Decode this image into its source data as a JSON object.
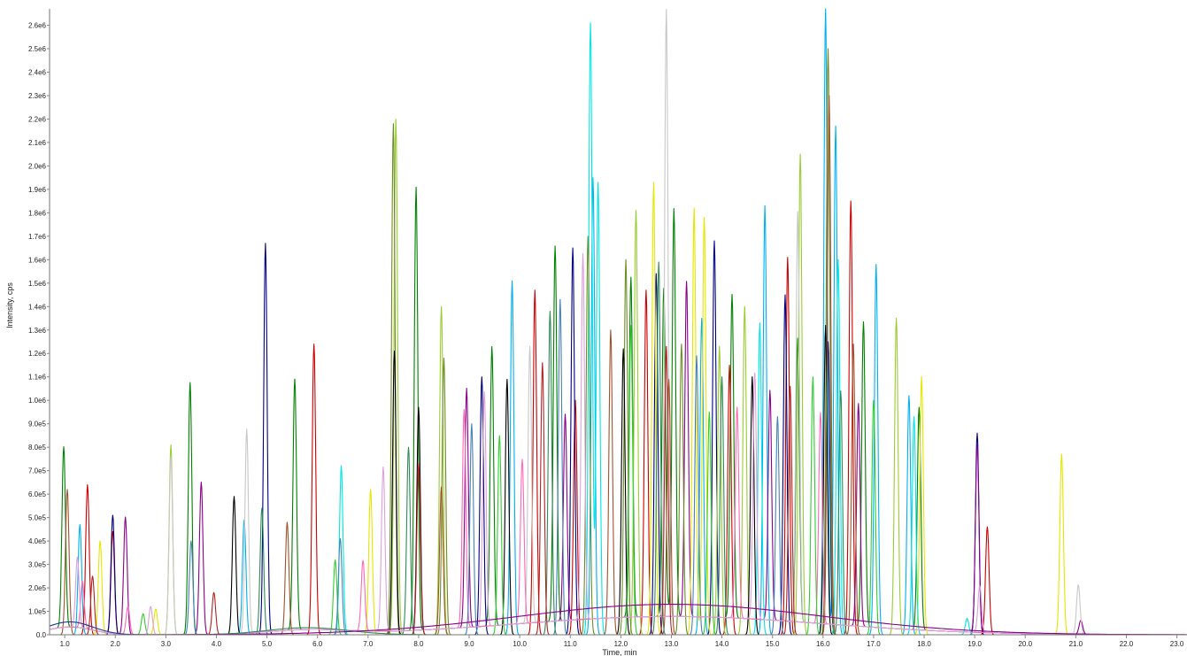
{
  "chart_data": {
    "type": "line",
    "xlabel": "Time, min",
    "ylabel": "Intensity, cps",
    "xlim": [
      0.7,
      23.2
    ],
    "ylim": [
      0,
      2670000
    ],
    "x_ticks": [
      "1.0",
      "2.0",
      "3.0",
      "4.0",
      "5.0",
      "6.0",
      "7.0",
      "8.0",
      "9.0",
      "10.0",
      "11.0",
      "12.0",
      "13.0",
      "14.0",
      "15.0",
      "16.0",
      "17.0",
      "18.0",
      "19.0",
      "20.0",
      "21.0",
      "22.0",
      "23.0"
    ],
    "y_ticks": [
      "0.0",
      "1.0e5",
      "2.0e5",
      "3.0e5",
      "4.0e5",
      "5.0e5",
      "6.0e5",
      "7.0e5",
      "8.0e5",
      "9.0e5",
      "1.0e6",
      "1.1e6",
      "1.2e6",
      "1.3e6",
      "1.4e6",
      "1.5e6",
      "1.6e6",
      "1.7e6",
      "1.8e6",
      "1.9e6",
      "2.0e6",
      "2.1e6",
      "2.2e6",
      "2.3e6",
      "2.4e6",
      "2.5e6",
      "2.6e6"
    ],
    "grid": false,
    "legend": "none",
    "peak_width_min": 0.035,
    "series": [
      {
        "color": "#008000",
        "peaks": [
          [
            0.98,
            770000
          ],
          [
            3.48,
            1075000
          ],
          [
            5.55,
            1070000
          ],
          [
            7.95,
            1890000
          ],
          [
            9.45,
            1190000
          ],
          [
            10.7,
            1600000
          ],
          [
            12.2,
            1450000
          ],
          [
            13.05,
            1740000
          ],
          [
            14.2,
            1380000
          ],
          [
            15.5,
            1210000
          ],
          [
            16.8,
            1300000
          ],
          [
            17.9,
            950000
          ],
          [
            12.85,
            1400000
          ]
        ]
      },
      {
        "color": "#00b0f0",
        "peaks": [
          [
            1.3,
            470000
          ],
          [
            4.55,
            490000
          ],
          [
            9.85,
            1510000
          ],
          [
            11.45,
            1950000
          ],
          [
            13.6,
            1350000
          ],
          [
            14.85,
            1830000
          ],
          [
            16.25,
            2170000
          ],
          [
            17.05,
            1580000
          ],
          [
            17.7,
            1020000
          ],
          [
            16.05,
            2670000
          ]
        ]
      },
      {
        "color": "#cc0000",
        "peaks": [
          [
            1.45,
            640000
          ],
          [
            1.95,
            440000
          ],
          [
            5.93,
            1240000
          ],
          [
            10.3,
            1470000
          ],
          [
            12.5,
            1470000
          ],
          [
            14.15,
            1150000
          ],
          [
            15.3,
            1610000
          ],
          [
            16.55,
            1850000
          ],
          [
            19.25,
            460000
          ],
          [
            11.1,
            1000000
          ]
        ]
      },
      {
        "color": "#000080",
        "peaks": [
          [
            1.95,
            510000
          ],
          [
            4.97,
            1670000
          ],
          [
            11.05,
            1650000
          ],
          [
            12.7,
            1540000
          ],
          [
            13.85,
            1680000
          ],
          [
            15.25,
            1450000
          ],
          [
            9.25,
            1100000
          ],
          [
            19.05,
            860000
          ],
          [
            16.1,
            1250000
          ]
        ]
      },
      {
        "color": "#8b008b",
        "peaks": [
          [
            2.2,
            500000
          ],
          [
            3.7,
            650000
          ],
          [
            8.95,
            1020000
          ],
          [
            10.9,
            880000
          ],
          [
            13.3,
            1430000
          ],
          [
            14.95,
            980000
          ],
          [
            16.7,
            950000
          ],
          [
            19.05,
            800000
          ],
          [
            21.1,
            60000
          ]
        ]
      },
      {
        "color": "#9acd32",
        "peaks": [
          [
            3.1,
            810000
          ],
          [
            7.55,
            2200000
          ],
          [
            8.45,
            1400000
          ],
          [
            12.3,
            1810000
          ],
          [
            13.95,
            1230000
          ],
          [
            15.55,
            2050000
          ],
          [
            17.45,
            1350000
          ],
          [
            14.45,
            1400000
          ]
        ]
      },
      {
        "color": "#e6e600",
        "peaks": [
          [
            1.7,
            400000
          ],
          [
            2.8,
            110000
          ],
          [
            7.05,
            620000
          ],
          [
            12.65,
            1930000
          ],
          [
            13.45,
            1820000
          ],
          [
            13.65,
            1780000
          ],
          [
            17.95,
            1100000
          ],
          [
            20.72,
            770000
          ]
        ]
      },
      {
        "color": "#00e5e5",
        "peaks": [
          [
            6.47,
            720000
          ],
          [
            11.4,
            2610000
          ],
          [
            11.55,
            1930000
          ],
          [
            14.75,
            1330000
          ],
          [
            16.3,
            1600000
          ],
          [
            17.8,
            930000
          ],
          [
            18.85,
            70000
          ]
        ]
      },
      {
        "color": "#c8c8c8",
        "peaks": [
          [
            3.1,
            760000
          ],
          [
            4.6,
            870000
          ],
          [
            12.9,
            2590000
          ],
          [
            15.5,
            1750000
          ],
          [
            10.2,
            1180000
          ],
          [
            21.05,
            210000
          ]
        ]
      },
      {
        "color": "#6b8e23",
        "peaks": [
          [
            7.5,
            2180000
          ],
          [
            8.5,
            1180000
          ],
          [
            11.35,
            1700000
          ],
          [
            16.1,
            2500000
          ],
          [
            12.1,
            1600000
          ],
          [
            13.2,
            1240000
          ]
        ]
      },
      {
        "color": "#000000",
        "peaks": [
          [
            4.35,
            590000
          ],
          [
            7.52,
            1210000
          ],
          [
            9.75,
            1090000
          ],
          [
            12.05,
            1220000
          ],
          [
            14.6,
            1100000
          ],
          [
            16.05,
            1320000
          ],
          [
            8.0,
            970000
          ]
        ]
      },
      {
        "color": "#a0522d",
        "peaks": [
          [
            1.05,
            620000
          ],
          [
            5.4,
            480000
          ],
          [
            8.45,
            630000
          ],
          [
            11.8,
            1300000
          ],
          [
            16.12,
            2300000
          ],
          [
            16.6,
            1240000
          ],
          [
            12.95,
            1090000
          ]
        ]
      },
      {
        "color": "#ff69b4",
        "peaks": [
          [
            1.35,
            200000
          ],
          [
            2.25,
            120000
          ],
          [
            6.9,
            300000
          ],
          [
            8.9,
            930000
          ],
          [
            10.05,
            700000
          ],
          [
            14.3,
            900000
          ],
          [
            15.95,
            900000
          ]
        ]
      },
      {
        "color": "#32cd32",
        "peaks": [
          [
            2.55,
            90000
          ],
          [
            6.35,
            320000
          ],
          [
            9.6,
            850000
          ],
          [
            12.2,
            1320000
          ],
          [
            13.75,
            950000
          ],
          [
            15.8,
            1100000
          ],
          [
            17.0,
            1000000
          ]
        ]
      },
      {
        "color": "#4682b4",
        "peaks": [
          [
            3.5,
            400000
          ],
          [
            6.45,
            410000
          ],
          [
            9.05,
            900000
          ],
          [
            10.8,
            1430000
          ],
          [
            13.5,
            1190000
          ],
          [
            15.1,
            930000
          ]
        ]
      },
      {
        "color": "#2e8b57",
        "peaks": [
          [
            4.9,
            540000
          ],
          [
            7.8,
            800000
          ],
          [
            10.6,
            1380000
          ],
          [
            12.75,
            1590000
          ],
          [
            14.0,
            1100000
          ],
          [
            16.35,
            1040000
          ]
        ]
      },
      {
        "color": "#dda0dd",
        "peaks": [
          [
            1.25,
            300000
          ],
          [
            2.7,
            120000
          ],
          [
            7.3,
            700000
          ],
          [
            9.3,
            1000000
          ],
          [
            11.25,
            1560000
          ],
          [
            14.65,
            1050000
          ],
          [
            19.1,
            200000
          ]
        ]
      },
      {
        "color": "#b22222",
        "peaks": [
          [
            1.55,
            250000
          ],
          [
            3.95,
            180000
          ],
          [
            8.0,
            730000
          ],
          [
            10.45,
            1160000
          ],
          [
            12.9,
            1230000
          ],
          [
            15.35,
            1060000
          ]
        ]
      }
    ],
    "baseline_humps": [
      [
        1.1,
        0.45,
        110000
      ],
      [
        5.8,
        0.8,
        60000
      ],
      [
        13.0,
        3.0,
        260000
      ]
    ]
  }
}
